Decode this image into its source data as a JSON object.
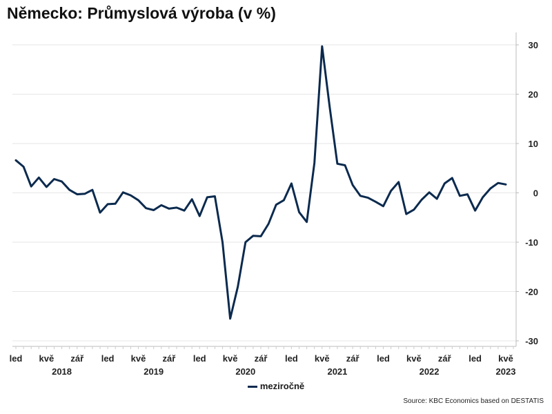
{
  "chart_data": {
    "type": "line",
    "title": "Německo: Průmyslová výroba (v %)",
    "xlabel": "",
    "ylabel": "",
    "ylim": [
      -30,
      30
    ],
    "yticks": [
      30,
      20,
      10,
      0,
      -10,
      -20,
      -30
    ],
    "ytick_labels": [
      "30",
      "20",
      "10",
      "0",
      "-10",
      "-20",
      "-30"
    ],
    "x_start_month": "2018-01",
    "month_tick_labels": [
      {
        "month": 0,
        "label": "led"
      },
      {
        "month": 4,
        "label": "kvě"
      },
      {
        "month": 8,
        "label": "zář"
      },
      {
        "month": 12,
        "label": "led"
      },
      {
        "month": 16,
        "label": "kvě"
      },
      {
        "month": 20,
        "label": "zář"
      },
      {
        "month": 24,
        "label": "led"
      },
      {
        "month": 28,
        "label": "kvě"
      },
      {
        "month": 32,
        "label": "zář"
      },
      {
        "month": 36,
        "label": "led"
      },
      {
        "month": 40,
        "label": "kvě"
      },
      {
        "month": 44,
        "label": "zář"
      },
      {
        "month": 48,
        "label": "led"
      },
      {
        "month": 52,
        "label": "kvě"
      },
      {
        "month": 56,
        "label": "zář"
      },
      {
        "month": 60,
        "label": "led"
      },
      {
        "month": 64,
        "label": "kvě"
      }
    ],
    "year_labels": [
      {
        "month": 6,
        "label": "2018"
      },
      {
        "month": 18,
        "label": "2019"
      },
      {
        "month": 30,
        "label": "2020"
      },
      {
        "month": 42,
        "label": "2021"
      },
      {
        "month": 54,
        "label": "2022"
      },
      {
        "month": 64,
        "label": "2023"
      }
    ],
    "grid": true,
    "legend_position": "bottom-center",
    "series": [
      {
        "name": "meziročně",
        "color": "#0b2a4e",
        "values": [
          6.6,
          5.3,
          1.3,
          3.1,
          1.2,
          2.8,
          2.3,
          0.6,
          -0.3,
          -0.2,
          0.6,
          -4.0,
          -2.3,
          -2.2,
          0.1,
          -0.5,
          -1.5,
          -3.1,
          -3.5,
          -2.5,
          -3.2,
          -3.0,
          -3.6,
          -1.3,
          -4.7,
          -0.9,
          -0.7,
          -10.0,
          -25.5,
          -19.0,
          -10.0,
          -8.7,
          -8.8,
          -6.3,
          -2.4,
          -1.5,
          1.9,
          -3.9,
          -5.9,
          6.1,
          29.7,
          17.4,
          5.9,
          5.6,
          1.6,
          -0.6,
          -1.0,
          -1.8,
          -2.7,
          0.4,
          2.2,
          -4.3,
          -3.4,
          -1.4,
          0.1,
          -1.2,
          1.9,
          3.0,
          -0.6,
          -0.3,
          -3.6,
          -0.9,
          0.9,
          2.0,
          1.7
        ]
      }
    ]
  },
  "source": "Source: KBC Economics based on DESTATIS"
}
